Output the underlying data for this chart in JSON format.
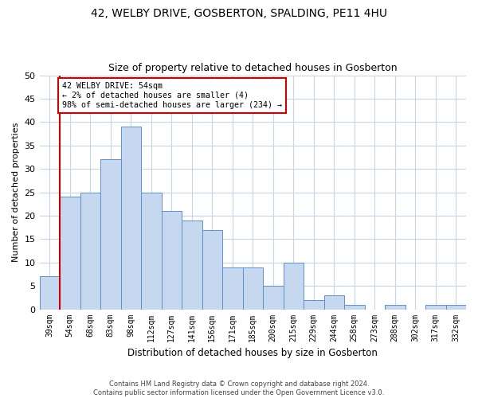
{
  "title1": "42, WELBY DRIVE, GOSBERTON, SPALDING, PE11 4HU",
  "title2": "Size of property relative to detached houses in Gosberton",
  "xlabel": "Distribution of detached houses by size in Gosberton",
  "ylabel": "Number of detached properties",
  "footnote1": "Contains HM Land Registry data © Crown copyright and database right 2024.",
  "footnote2": "Contains public sector information licensed under the Open Government Licence v3.0.",
  "annotation_line1": "42 WELBY DRIVE: 54sqm",
  "annotation_line2": "← 2% of detached houses are smaller (4)",
  "annotation_line3": "98% of semi-detached houses are larger (234) →",
  "bar_color": "#c5d8f0",
  "bar_edge_color": "#6090c8",
  "highlight_line_color": "#cc0000",
  "annotation_box_edge_color": "#cc0000",
  "background_color": "#ffffff",
  "grid_color": "#c8d4e4",
  "categories": [
    "39sqm",
    "54sqm",
    "68sqm",
    "83sqm",
    "98sqm",
    "112sqm",
    "127sqm",
    "141sqm",
    "156sqm",
    "171sqm",
    "185sqm",
    "200sqm",
    "215sqm",
    "229sqm",
    "244sqm",
    "258sqm",
    "273sqm",
    "288sqm",
    "302sqm",
    "317sqm",
    "332sqm"
  ],
  "values": [
    7,
    24,
    25,
    32,
    39,
    25,
    21,
    19,
    17,
    9,
    9,
    5,
    10,
    2,
    3,
    1,
    0,
    1,
    0,
    1,
    1
  ],
  "highlight_index": 1,
  "ylim": [
    0,
    50
  ],
  "yticks": [
    0,
    5,
    10,
    15,
    20,
    25,
    30,
    35,
    40,
    45,
    50
  ],
  "bar_width": 1.0,
  "figsize": [
    6.0,
    5.0
  ],
  "dpi": 100
}
